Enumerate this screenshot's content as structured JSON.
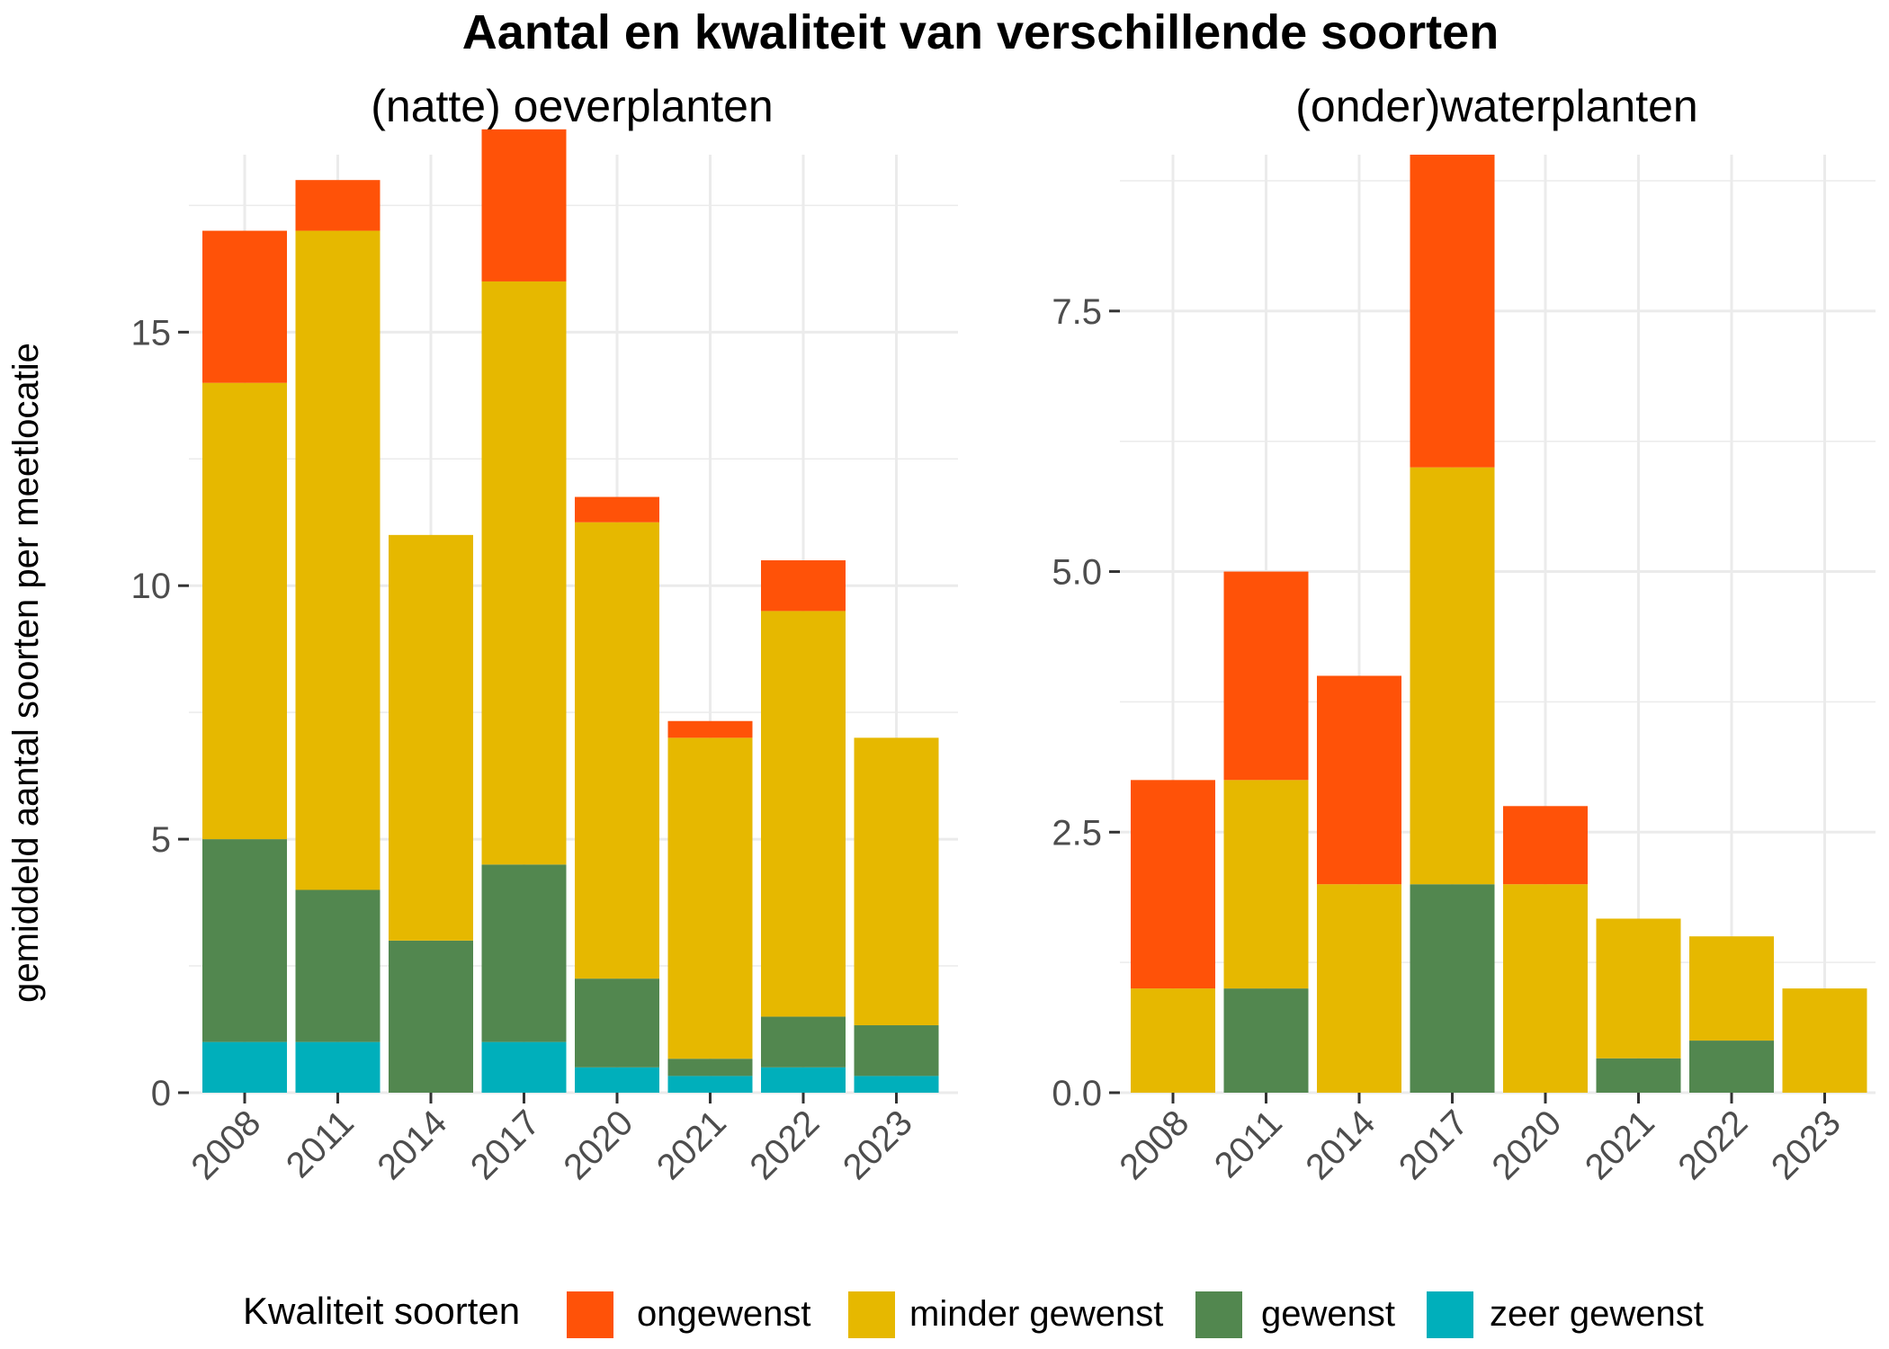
{
  "chart_data": {
    "title": "Aantal en kwaliteit van verschillende soorten",
    "ylabel": "gemiddeld aantal soorten per meetlocatie",
    "type": "bar",
    "stacked": true,
    "legend": {
      "title": "Kwaliteit soorten",
      "position": "bottom",
      "entries": [
        {
          "label": "ongewenst",
          "color": "#FF5208"
        },
        {
          "label": "minder gewenst",
          "color": "#E6B800"
        },
        {
          "label": "gewenst",
          "color": "#52874F"
        },
        {
          "label": "zeer gewenst",
          "color": "#00AFBB"
        }
      ]
    },
    "panels": [
      {
        "title": "(natte) oeverplanten",
        "categories": [
          "2008",
          "2011",
          "2014",
          "2017",
          "2020",
          "2021",
          "2022",
          "2023"
        ],
        "ylim": [
          0,
          18.5
        ],
        "yticks": [
          0,
          5,
          10,
          15
        ],
        "ytick_labels": [
          "0",
          "5",
          "10",
          "15"
        ],
        "series": [
          {
            "name": "zeer gewenst",
            "values": [
              1,
              1,
              0,
              1,
              0.5,
              0.33,
              0.5,
              0.33
            ]
          },
          {
            "name": "gewenst",
            "values": [
              4,
              3,
              3,
              3.5,
              1.75,
              0.34,
              1,
              1
            ]
          },
          {
            "name": "minder gewenst",
            "values": [
              9,
              13,
              8,
              11.5,
              9,
              6.33,
              8,
              5.67
            ]
          },
          {
            "name": "ongewenst",
            "values": [
              3,
              1,
              0,
              3,
              0.5,
              0.33,
              1,
              0
            ]
          }
        ]
      },
      {
        "title": "(onder)waterplanten",
        "categories": [
          "2008",
          "2011",
          "2014",
          "2017",
          "2020",
          "2021",
          "2022",
          "2023"
        ],
        "ylim": [
          0,
          9
        ],
        "yticks": [
          0,
          2.5,
          5,
          7.5
        ],
        "ytick_labels": [
          "0.0",
          "2.5",
          "5.0",
          "7.5"
        ],
        "series": [
          {
            "name": "zeer gewenst",
            "values": [
              0,
              0,
              0,
              0,
              0,
              0,
              0,
              0
            ]
          },
          {
            "name": "gewenst",
            "values": [
              0,
              1,
              0,
              2,
              0,
              0.33,
              0.5,
              0
            ]
          },
          {
            "name": "minder gewenst",
            "values": [
              1,
              2,
              2,
              4,
              2,
              1.34,
              1,
              1
            ]
          },
          {
            "name": "ongewenst",
            "values": [
              2,
              2,
              2,
              3,
              0.75,
              0,
              0,
              0
            ]
          }
        ]
      }
    ]
  }
}
